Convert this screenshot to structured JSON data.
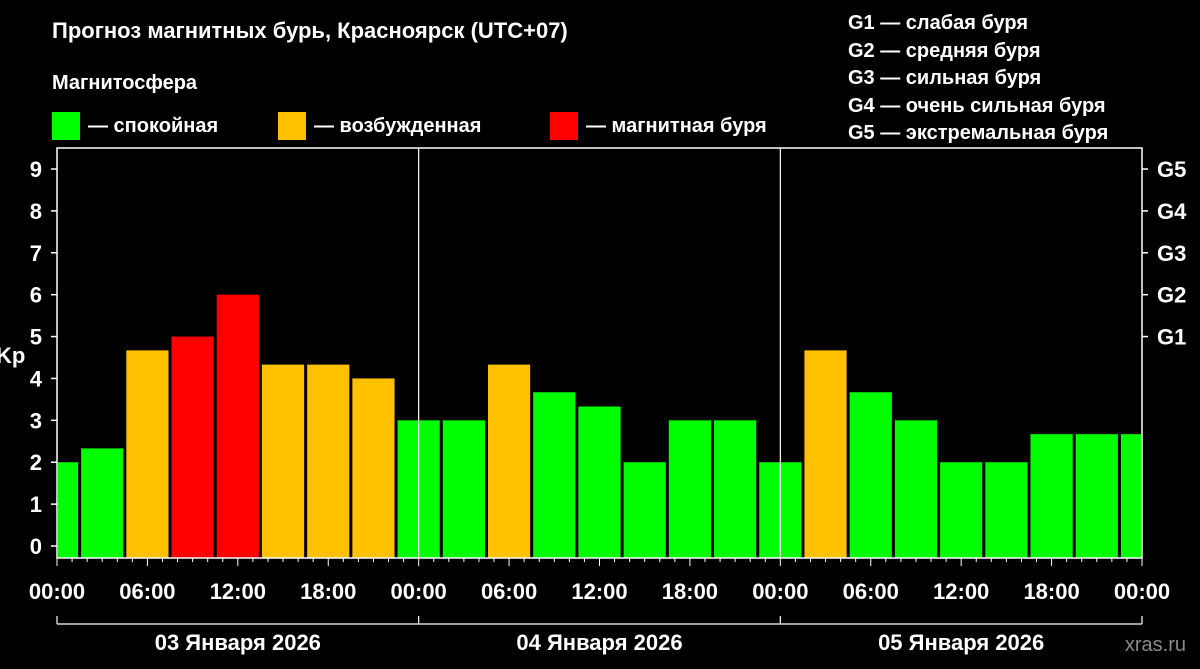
{
  "header": {
    "title": "Прогноз магнитных бурь, Красноярск (UTC+07)",
    "subtitle": "Магнитосфера"
  },
  "legend": [
    {
      "label": "— спокойная",
      "color": "#00ff00"
    },
    {
      "label": "— возбужденная",
      "color": "#ffc000"
    },
    {
      "label": "— магнитная буря",
      "color": "#ff0000"
    }
  ],
  "g_scale": [
    "G1 — слабая буря",
    "G2 — средняя буря",
    "G3 — сильная буря",
    "G4 — очень сильная буря",
    "G5 — экстремальная буря"
  ],
  "watermark": "xras.ru",
  "chart_data": {
    "type": "bar",
    "ylabel": "Kp",
    "ylim": [
      0,
      9
    ],
    "y_ticks": [
      "0",
      "1",
      "2",
      "3",
      "4",
      "5",
      "6",
      "7",
      "8",
      "9"
    ],
    "right_ticks": [
      {
        "value": 5,
        "label": "G1"
      },
      {
        "value": 6,
        "label": "G2"
      },
      {
        "value": 7,
        "label": "G3"
      },
      {
        "value": 8,
        "label": "G4"
      },
      {
        "value": 9,
        "label": "G5"
      }
    ],
    "x_tick_labels": [
      "00:00",
      "06:00",
      "12:00",
      "18:00",
      "00:00",
      "06:00",
      "12:00",
      "18:00",
      "00:00",
      "06:00",
      "12:00",
      "18:00",
      "00:00"
    ],
    "days": [
      "03 Января 2026",
      "04 Января 2026",
      "05 Января 2026"
    ],
    "x_range_hours": [
      0,
      72
    ],
    "values": [
      2.0,
      2.33,
      4.67,
      5.0,
      6.0,
      4.33,
      4.33,
      4.0,
      3.0,
      3.0,
      4.33,
      3.67,
      3.33,
      2.0,
      3.0,
      3.0,
      2.0,
      4.67,
      3.67,
      3.0,
      2.0,
      2.0,
      2.67,
      2.67,
      2.67
    ],
    "colors": {
      "quiet": "#00ff00",
      "active": "#ffc000",
      "storm": "#ff0000"
    },
    "grid": false
  }
}
